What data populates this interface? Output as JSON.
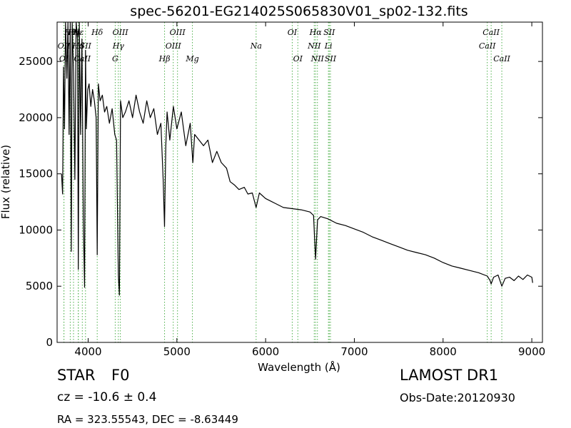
{
  "chart_data": {
    "type": "line",
    "title": "spec-56201-EG214025S065830V01_sp02-132.fits",
    "xlabel": "Wavelength (Å)",
    "ylabel": "Flux (relative)",
    "xlim": [
      3650,
      9120
    ],
    "ylim": [
      0,
      28500
    ],
    "x_ticks": [
      4000,
      5000,
      6000,
      7000,
      8000,
      9000
    ],
    "y_ticks": [
      0,
      5000,
      10000,
      15000,
      20000,
      25000
    ],
    "grid": false,
    "line_color": "#000000",
    "line_marker_color": "#4daf4a",
    "series": [
      {
        "x": [
          3700,
          3712,
          3722,
          3734,
          3745,
          3760,
          3772,
          3785,
          3798,
          3810,
          3820,
          3835,
          3850,
          3865,
          3880,
          3889,
          3900,
          3915,
          3930,
          3945,
          3960,
          3970,
          3980,
          3995,
          4010,
          4030,
          4050,
          4070,
          4090,
          4102,
          4115,
          4135,
          4160,
          4185,
          4210,
          4240,
          4270,
          4300,
          4320,
          4340,
          4352,
          4365,
          4390,
          4420,
          4460,
          4500,
          4540,
          4580,
          4620,
          4660,
          4700,
          4740,
          4780,
          4820,
          4845,
          4861,
          4875,
          4890,
          4920,
          4960,
          5000,
          5050,
          5100,
          5150,
          5180,
          5200,
          5250,
          5300,
          5350,
          5400,
          5450,
          5500,
          5560,
          5600,
          5650,
          5700,
          5760,
          5800,
          5850,
          5893,
          5930,
          6000,
          6100,
          6200,
          6300,
          6400,
          6500,
          6540,
          6563,
          6585,
          6620,
          6700,
          6800,
          6900,
          7000,
          7100,
          7200,
          7300,
          7400,
          7500,
          7600,
          7700,
          7800,
          7900,
          8000,
          8100,
          8200,
          8300,
          8400,
          8498,
          8530,
          8542,
          8570,
          8620,
          8662,
          8700,
          8750,
          8800,
          8850,
          8900,
          8950,
          9000,
          9010
        ],
        "y": [
          15000,
          13200,
          24500,
          19000,
          28500,
          23500,
          28500,
          18500,
          28500,
          8100,
          28500,
          24000,
          14500,
          28500,
          27000,
          6500,
          28500,
          18500,
          27000,
          11000,
          4900,
          26000,
          19000,
          22500,
          23000,
          21000,
          22500,
          21500,
          20000,
          7800,
          23000,
          21500,
          22000,
          20500,
          21000,
          19500,
          20800,
          18500,
          18000,
          6000,
          4200,
          21500,
          20000,
          20500,
          21500,
          20000,
          22000,
          20500,
          19500,
          21500,
          20000,
          20800,
          18500,
          19500,
          14500,
          10300,
          17500,
          20500,
          18000,
          21000,
          19000,
          20500,
          17500,
          19500,
          16000,
          18500,
          18000,
          17500,
          18000,
          16000,
          17000,
          16000,
          15500,
          14300,
          14000,
          13600,
          13800,
          13200,
          13300,
          12000,
          13300,
          12800,
          12400,
          12000,
          11900,
          11800,
          11600,
          11300,
          7400,
          10900,
          11200,
          11000,
          10600,
          10400,
          10100,
          9800,
          9400,
          9100,
          8800,
          8500,
          8200,
          8000,
          7800,
          7500,
          7100,
          6800,
          6600,
          6400,
          6200,
          5900,
          5500,
          5200,
          5800,
          6000,
          5000,
          5700,
          5800,
          5500,
          5900,
          5600,
          6000,
          5800,
          5300
        ]
      }
    ],
    "spectral_lines": [
      {
        "label": "OII",
        "x": 3727,
        "row": 1
      },
      {
        "label": "OI",
        "x": 3727,
        "row": 2
      },
      {
        "label": "Hθ",
        "x": 3798,
        "row": 0
      },
      {
        "label": "Hη",
        "x": 3835,
        "row": 0
      },
      {
        "label": "Hε",
        "x": 3889,
        "row": 0
      },
      {
        "label": "Hd",
        "x": 3889,
        "row": 1
      },
      {
        "label": "SII",
        "x": 3970,
        "row": 1
      },
      {
        "label": "CaII",
        "x": 3934,
        "row": 2
      },
      {
        "label": "Hδ",
        "x": 4102,
        "row": 0
      },
      {
        "label": "OIII",
        "x": 4363,
        "row": 0
      },
      {
        "label": "Hγ",
        "x": 4340,
        "row": 1
      },
      {
        "label": "G",
        "x": 4305,
        "row": 2
      },
      {
        "label": "OIII",
        "x": 5007,
        "row": 0
      },
      {
        "label": "OIII",
        "x": 4959,
        "row": 1
      },
      {
        "label": "Hβ",
        "x": 4861,
        "row": 2
      },
      {
        "label": "Mg",
        "x": 5175,
        "row": 2
      },
      {
        "label": "Na",
        "x": 5893,
        "row": 1
      },
      {
        "label": "OI",
        "x": 6300,
        "row": 0
      },
      {
        "label": "OI",
        "x": 6363,
        "row": 2
      },
      {
        "label": "Hα",
        "x": 6563,
        "row": 0
      },
      {
        "label": "SII",
        "x": 6717,
        "row": 0
      },
      {
        "label": "NII",
        "x": 6548,
        "row": 1
      },
      {
        "label": "Li",
        "x": 6708,
        "row": 1
      },
      {
        "label": "NII",
        "x": 6584,
        "row": 2
      },
      {
        "label": "SII",
        "x": 6731,
        "row": 2
      },
      {
        "label": "CaII",
        "x": 8542,
        "row": 0
      },
      {
        "label": "CaII",
        "x": 8498,
        "row": 1
      },
      {
        "label": "CaII",
        "x": 8662,
        "row": 2
      }
    ]
  },
  "info": {
    "object_class": "STAR",
    "subclass": "F0",
    "cz": "cz = -10.6 ± 0.4",
    "survey": "LAMOST DR1",
    "obs_date": "Obs-Date:20120930",
    "coords": "RA = 323.55543, DEC = -8.63449"
  }
}
